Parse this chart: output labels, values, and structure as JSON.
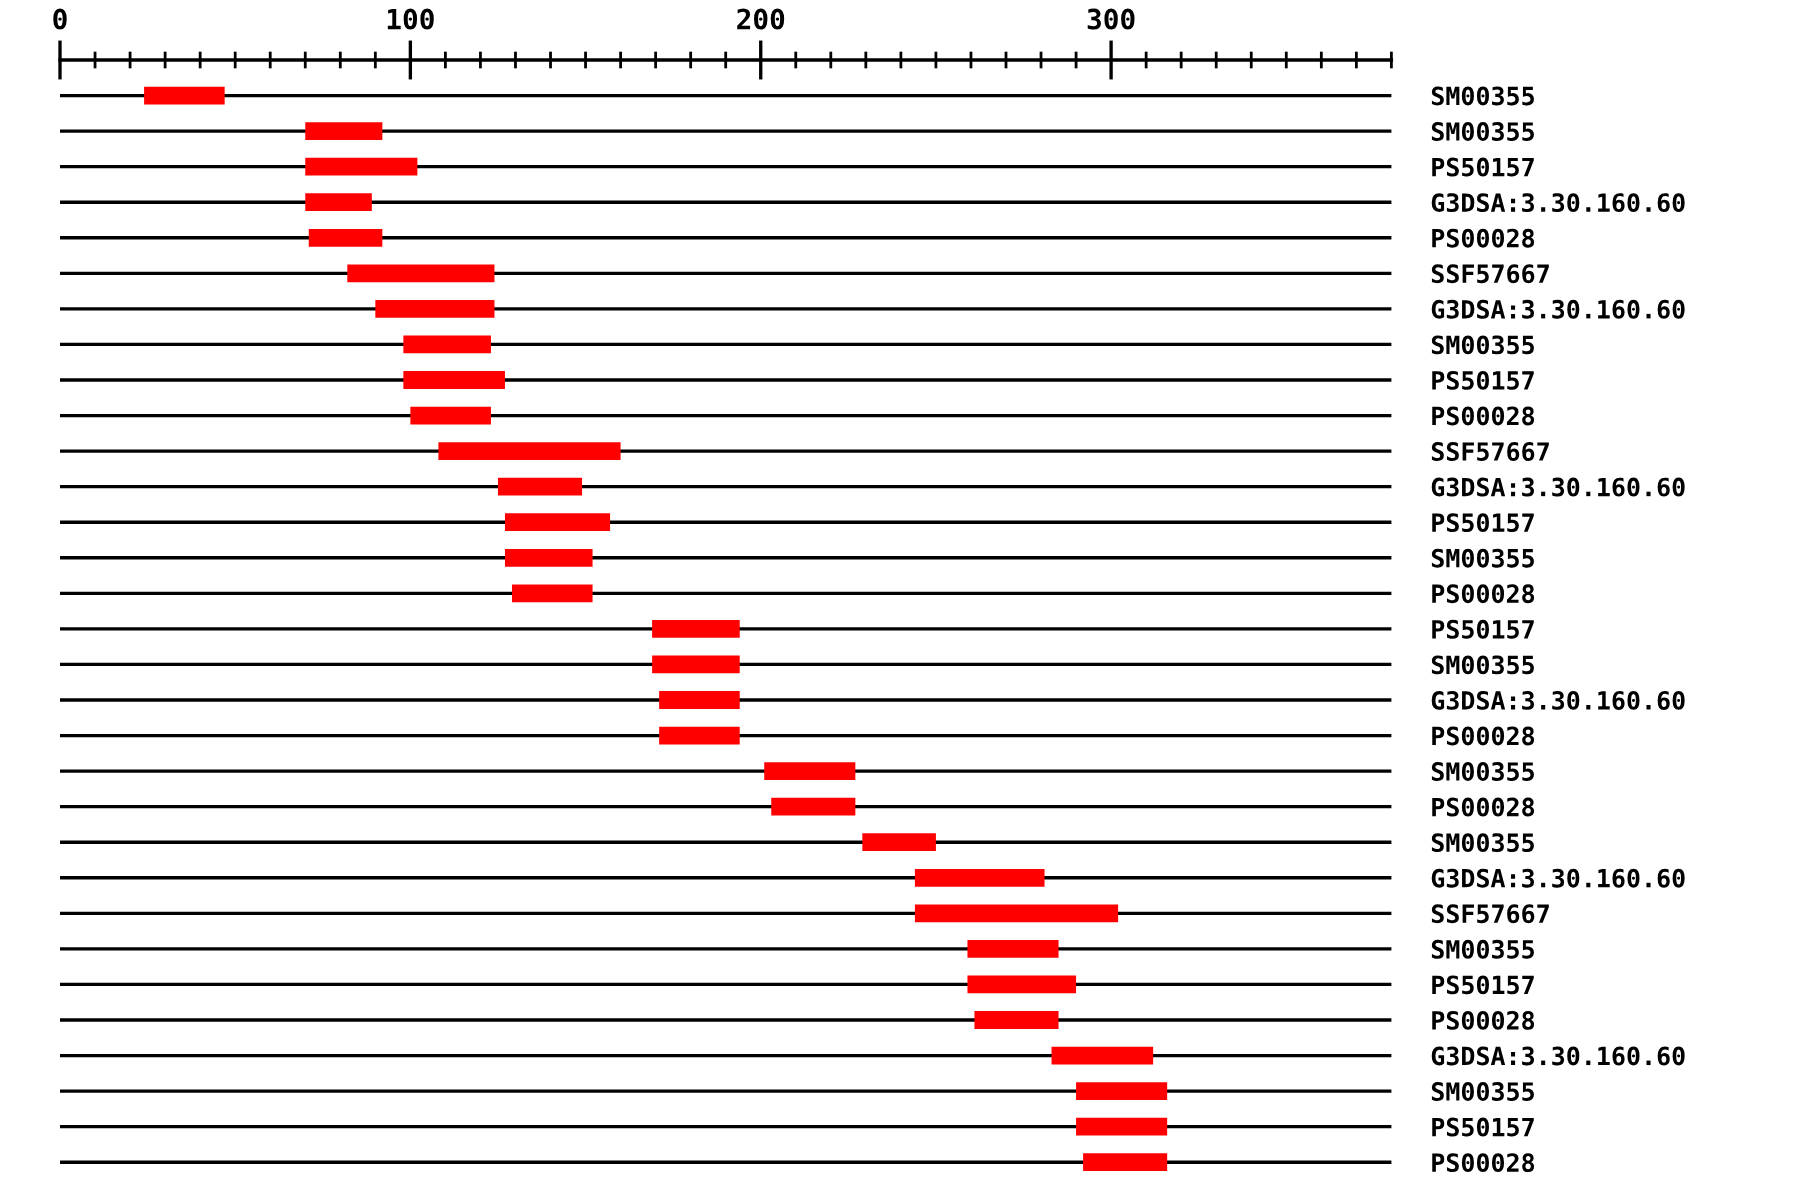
{
  "chart_data": {
    "type": "bar",
    "orientation": "horizontal",
    "categories": [
      "SM00355",
      "SM00355",
      "PS50157",
      "G3DSA:3.30.160.60",
      "PS00028",
      "SSF57667",
      "G3DSA:3.30.160.60",
      "SM00355",
      "PS50157",
      "PS00028",
      "SSF57667",
      "G3DSA:3.30.160.60",
      "PS50157",
      "SM00355",
      "PS00028",
      "PS50157",
      "SM00355",
      "G3DSA:3.30.160.60",
      "PS00028",
      "SM00355",
      "PS00028",
      "SM00355",
      "G3DSA:3.30.160.60",
      "SSF57667",
      "SM00355",
      "PS50157",
      "PS00028",
      "G3DSA:3.30.160.60",
      "SM00355",
      "PS50157",
      "PS00028"
    ],
    "base": [
      24,
      70,
      70,
      70,
      71,
      82,
      90,
      98,
      98,
      100,
      108,
      125,
      127,
      127,
      129,
      169,
      169,
      171,
      171,
      201,
      203,
      229,
      244,
      244,
      259,
      259,
      261,
      283,
      290,
      290,
      292
    ],
    "values": [
      23,
      22,
      32,
      19,
      21,
      42,
      34,
      25,
      29,
      23,
      52,
      24,
      30,
      25,
      23,
      25,
      25,
      23,
      23,
      26,
      24,
      21,
      37,
      58,
      26,
      31,
      24,
      29,
      26,
      26,
      24
    ],
    "color": "#ff0000",
    "xlim": [
      0,
      380
    ],
    "xticks": [
      0,
      {
        "value": 10,
        "label": null
      },
      {
        "value": 20,
        "label": null
      },
      {
        "value": 30,
        "label": null
      },
      {
        "value": 40,
        "label": null
      },
      {
        "value": 50,
        "label": null
      },
      {
        "value": 60,
        "label": null
      },
      {
        "value": 70,
        "label": null
      },
      {
        "value": 80,
        "label": null
      },
      {
        "value": 90,
        "label": null
      },
      100,
      {
        "value": 110,
        "label": null
      },
      {
        "value": 120,
        "label": null
      },
      {
        "value": 130,
        "label": null
      },
      {
        "value": 140,
        "label": null
      },
      {
        "value": 150,
        "label": null
      },
      {
        "value": 160,
        "label": null
      },
      {
        "value": 170,
        "label": null
      },
      {
        "value": 180,
        "label": null
      },
      {
        "value": 190,
        "label": null
      },
      200,
      {
        "value": 210,
        "label": null
      },
      {
        "value": 220,
        "label": null
      },
      {
        "value": 230,
        "label": null
      },
      {
        "value": 240,
        "label": null
      },
      {
        "value": 250,
        "label": null
      },
      {
        "value": 260,
        "label": null
      },
      {
        "value": 270,
        "label": null
      },
      {
        "value": 280,
        "label": null
      },
      {
        "value": 290,
        "label": null
      },
      300,
      {
        "value": 310,
        "label": null
      },
      {
        "value": 320,
        "label": null
      },
      {
        "value": 330,
        "label": null
      },
      {
        "value": 340,
        "label": null
      },
      {
        "value": 350,
        "label": null
      },
      {
        "value": 360,
        "label": null
      },
      {
        "value": 370,
        "label": null
      },
      {
        "value": 380,
        "label": null
      }
    ],
    "grid": "y"
  }
}
